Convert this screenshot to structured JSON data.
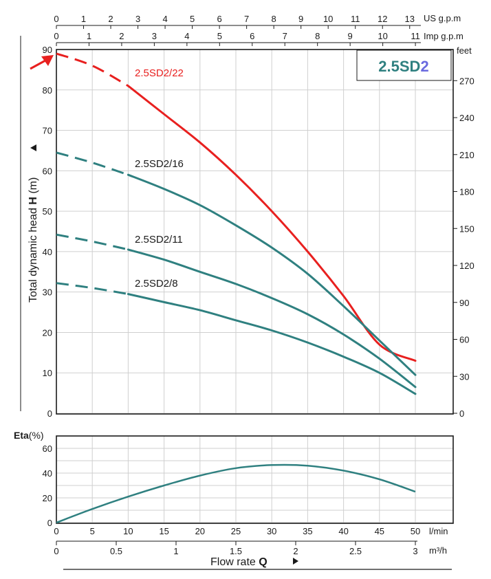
{
  "chart_data": [
    {
      "type": "line",
      "title": "2.5SD2",
      "title_parts": [
        "2.5SD",
        "2"
      ],
      "ylabel_prefix": "Total dynamic head ",
      "ylabel_var": "H",
      "ylabel_unit": " (m)",
      "xlabel_prefix": "Flow  rate  ",
      "xlabel_var": "Q",
      "ylim": [
        0,
        90
      ],
      "y_ticks": [
        0,
        10,
        20,
        30,
        40,
        50,
        60,
        70,
        80,
        90
      ],
      "feet_ticks": [
        0,
        30,
        60,
        90,
        120,
        150,
        180,
        210,
        240,
        270
      ],
      "feet_unit": "feet",
      "x_lmin_ticks": [
        0,
        5,
        10,
        15,
        20,
        25,
        30,
        35,
        40,
        45,
        50
      ],
      "x_lmin_unit": "l/min",
      "x_m3h_ticks": [
        "0",
        "0.5",
        "1",
        "1.5",
        "2",
        "2.5",
        "3"
      ],
      "x_m3h_unit": "m³/h",
      "us_gpm_ticks": [
        0,
        1,
        2,
        3,
        4,
        5,
        6,
        7,
        8,
        9,
        10,
        11,
        12,
        13
      ],
      "us_gpm_unit": "US g.p.m",
      "imp_gpm_ticks": [
        0,
        1,
        2,
        3,
        4,
        5,
        6,
        7,
        8,
        9,
        10,
        11
      ],
      "imp_gpm_unit": "Imp g.p.m",
      "grid": true,
      "series": [
        {
          "name": "2.5SD2/22",
          "color": "#e8201f",
          "dashed_until_x": 10,
          "x": [
            0,
            5,
            10,
            15,
            20,
            25,
            30,
            35,
            40,
            45,
            50
          ],
          "y": [
            89,
            86,
            81,
            74,
            67,
            59,
            50,
            40,
            29,
            17,
            13
          ]
        },
        {
          "name": "2.5SD2/16",
          "color": "#2f8080",
          "dashed_until_x": 10,
          "x": [
            0,
            5,
            10,
            15,
            20,
            25,
            30,
            35,
            40,
            45,
            50
          ],
          "y": [
            64.5,
            62,
            59,
            55.5,
            51.5,
            46.5,
            41,
            34.5,
            26.5,
            18,
            9.5
          ]
        },
        {
          "name": "2.5SD2/11",
          "color": "#2f8080",
          "dashed_until_x": 10,
          "x": [
            0,
            5,
            10,
            15,
            20,
            25,
            30,
            35,
            40,
            45,
            50
          ],
          "y": [
            44.2,
            42.5,
            40.5,
            38,
            35,
            32,
            28.5,
            24.5,
            19.5,
            13.5,
            6.5
          ]
        },
        {
          "name": "2.5SD2/8",
          "color": "#2f8080",
          "dashed_until_x": 10,
          "x": [
            0,
            5,
            10,
            15,
            20,
            25,
            30,
            35,
            40,
            45,
            50
          ],
          "y": [
            32.2,
            31,
            29.5,
            27.5,
            25.5,
            23,
            20.5,
            17.5,
            14,
            10,
            4.8
          ]
        }
      ],
      "highlight_arrow": "red-arrow-pointing-to-2.5SD2/22"
    },
    {
      "type": "line",
      "ylabel": "Eta",
      "ylabel_unit": "(%)",
      "ylim": [
        0,
        70
      ],
      "y_ticks": [
        0,
        20,
        40,
        60
      ],
      "grid": true,
      "series": [
        {
          "color": "#2f8080",
          "x": [
            0,
            5,
            10,
            15,
            20,
            25,
            30,
            35,
            40,
            45,
            50
          ],
          "y": [
            0,
            11,
            21,
            30,
            38,
            44,
            46.5,
            46,
            42,
            35,
            25
          ]
        }
      ]
    }
  ]
}
